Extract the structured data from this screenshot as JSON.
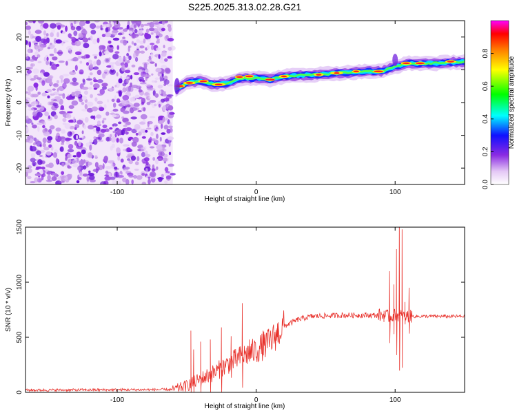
{
  "chart_data": [
    {
      "type": "heatmap",
      "title": "S225.2025.313.02.28.G21",
      "xlabel": "Height of straight line (km)",
      "ylabel": "Frequency (Hz)",
      "xlim": [
        -166,
        150
      ],
      "ylim": [
        -25,
        25
      ],
      "xticks": [
        -100,
        0,
        100
      ],
      "yticks": [
        -20,
        -10,
        0,
        10,
        20
      ],
      "noise_region_x": [
        -166,
        -60
      ],
      "ridge": [
        [
          -58,
          4
        ],
        [
          -50,
          6
        ],
        [
          -40,
          6.5
        ],
        [
          -30,
          5.5
        ],
        [
          -20,
          6
        ],
        [
          -10,
          7.5
        ],
        [
          0,
          7.5
        ],
        [
          10,
          7
        ],
        [
          20,
          8
        ],
        [
          40,
          8.5
        ],
        [
          60,
          9
        ],
        [
          80,
          9.5
        ],
        [
          90,
          9.5
        ],
        [
          100,
          11
        ],
        [
          110,
          12
        ],
        [
          130,
          12
        ],
        [
          150,
          12.5
        ]
      ],
      "colorbar": {
        "label": "Normalized spectral amplitude",
        "range": [
          0,
          1
        ],
        "ticks": [
          "0.0",
          "0.2",
          "0.4",
          "0.6",
          "0.8"
        ]
      }
    },
    {
      "type": "line",
      "title": "",
      "xlabel": "Height of straight line (km)",
      "ylabel": "SNR (10 * v/v)",
      "xlim": [
        -166,
        150
      ],
      "ylim": [
        0,
        1500
      ],
      "xticks": [
        -100,
        0,
        100
      ],
      "yticks": [
        0,
        500,
        1000,
        1500
      ],
      "series": [
        {
          "name": "SNR",
          "color": "#e8302a",
          "baseline": [
            [
              -166,
              20
            ],
            [
              -60,
              25
            ],
            [
              -50,
              60
            ],
            [
              -40,
              120
            ],
            [
              -30,
              180
            ],
            [
              -20,
              260
            ],
            [
              -10,
              330
            ],
            [
              0,
              380
            ],
            [
              10,
              460
            ],
            [
              20,
              600
            ],
            [
              30,
              660
            ],
            [
              40,
              690
            ],
            [
              60,
              700
            ],
            [
              80,
              700
            ],
            [
              90,
              700
            ],
            [
              95,
              690
            ],
            [
              100,
              700
            ],
            [
              110,
              690
            ],
            [
              130,
              690
            ],
            [
              150,
              690
            ]
          ],
          "spikes": [
            [
              -47,
              560
            ],
            [
              -45,
              390
            ],
            [
              -40,
              460
            ],
            [
              -33,
              480
            ],
            [
              -25,
              590
            ],
            [
              -18,
              510
            ],
            [
              -10,
              810
            ],
            [
              -5,
              480
            ],
            [
              5,
              560
            ],
            [
              15,
              580
            ],
            [
              92,
              740
            ],
            [
              96,
              1100
            ],
            [
              99,
              980
            ],
            [
              101,
              1300
            ],
            [
              103,
              1530
            ],
            [
              105,
              1480
            ],
            [
              107,
              820
            ],
            [
              110,
              950
            ]
          ]
        }
      ]
    }
  ]
}
